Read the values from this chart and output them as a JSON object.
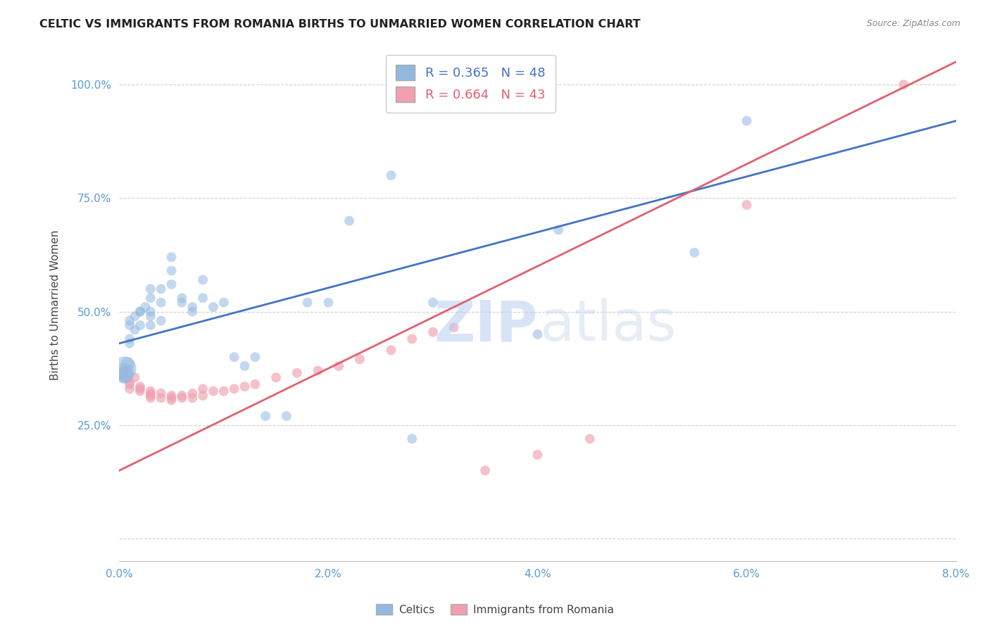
{
  "title": "CELTIC VS IMMIGRANTS FROM ROMANIA BIRTHS TO UNMARRIED WOMEN CORRELATION CHART",
  "source": "Source: ZipAtlas.com",
  "ylabel": "Births to Unmarried Women",
  "xlabel": "",
  "xlim": [
    0.0,
    0.08
  ],
  "ylim": [
    -0.05,
    1.08
  ],
  "xticks": [
    0.0,
    0.02,
    0.04,
    0.06,
    0.08
  ],
  "xtick_labels": [
    "0.0%",
    "2.0%",
    "4.0%",
    "6.0%",
    "8.0%"
  ],
  "yticks": [
    0.0,
    0.25,
    0.5,
    0.75,
    1.0
  ],
  "ytick_labels": [
    "",
    "25.0%",
    "50.0%",
    "75.0%",
    "100.0%"
  ],
  "watermark_zip": "ZIP",
  "watermark_atlas": "atlas",
  "legend_blue_label": "Celtics",
  "legend_pink_label": "Immigrants from Romania",
  "R_blue": 0.365,
  "N_blue": 48,
  "R_pink": 0.664,
  "N_pink": 43,
  "blue_color": "#93b8e0",
  "pink_color": "#f0a0b0",
  "blue_line_color": "#4472c4",
  "pink_line_color": "#e06070",
  "blue_line_x0": 0.0,
  "blue_line_y0": 0.43,
  "blue_line_x1": 0.08,
  "blue_line_y1": 0.92,
  "pink_line_x0": 0.0,
  "pink_line_y0": 0.15,
  "pink_line_x1": 0.08,
  "pink_line_y1": 1.05,
  "celtics_x": [
    0.0005,
    0.0005,
    0.0005,
    0.0008,
    0.001,
    0.001,
    0.001,
    0.001,
    0.0015,
    0.0015,
    0.002,
    0.002,
    0.002,
    0.0025,
    0.003,
    0.003,
    0.003,
    0.003,
    0.003,
    0.004,
    0.004,
    0.004,
    0.005,
    0.005,
    0.005,
    0.006,
    0.006,
    0.007,
    0.007,
    0.008,
    0.008,
    0.009,
    0.01,
    0.011,
    0.012,
    0.013,
    0.014,
    0.016,
    0.018,
    0.02,
    0.022,
    0.026,
    0.028,
    0.03,
    0.04,
    0.042,
    0.055,
    0.06
  ],
  "celtics_y": [
    0.375,
    0.365,
    0.36,
    0.385,
    0.43,
    0.44,
    0.47,
    0.48,
    0.46,
    0.49,
    0.5,
    0.5,
    0.47,
    0.51,
    0.5,
    0.53,
    0.55,
    0.49,
    0.47,
    0.55,
    0.52,
    0.48,
    0.62,
    0.59,
    0.56,
    0.53,
    0.52,
    0.51,
    0.5,
    0.57,
    0.53,
    0.51,
    0.52,
    0.4,
    0.38,
    0.4,
    0.27,
    0.27,
    0.52,
    0.52,
    0.7,
    0.8,
    0.22,
    0.52,
    0.45,
    0.68,
    0.63,
    0.92
  ],
  "celtics_size": [
    600,
    400,
    300,
    200,
    100,
    100,
    100,
    100,
    100,
    100,
    100,
    100,
    100,
    100,
    100,
    100,
    100,
    100,
    100,
    100,
    100,
    100,
    100,
    100,
    100,
    100,
    100,
    100,
    100,
    100,
    100,
    100,
    100,
    100,
    100,
    100,
    100,
    100,
    100,
    100,
    100,
    100,
    100,
    100,
    100,
    100,
    100,
    100
  ],
  "romania_x": [
    0.0005,
    0.0005,
    0.001,
    0.001,
    0.001,
    0.0015,
    0.002,
    0.002,
    0.002,
    0.003,
    0.003,
    0.003,
    0.003,
    0.004,
    0.004,
    0.005,
    0.005,
    0.005,
    0.006,
    0.006,
    0.007,
    0.007,
    0.008,
    0.008,
    0.009,
    0.01,
    0.011,
    0.012,
    0.013,
    0.015,
    0.017,
    0.019,
    0.021,
    0.023,
    0.026,
    0.028,
    0.03,
    0.032,
    0.035,
    0.04,
    0.045,
    0.06,
    0.075
  ],
  "romania_y": [
    0.37,
    0.355,
    0.345,
    0.34,
    0.33,
    0.355,
    0.335,
    0.33,
    0.325,
    0.325,
    0.32,
    0.315,
    0.31,
    0.32,
    0.31,
    0.315,
    0.31,
    0.305,
    0.315,
    0.31,
    0.32,
    0.31,
    0.33,
    0.315,
    0.325,
    0.325,
    0.33,
    0.335,
    0.34,
    0.355,
    0.365,
    0.37,
    0.38,
    0.395,
    0.415,
    0.44,
    0.455,
    0.465,
    0.15,
    0.185,
    0.22,
    0.735,
    1.0
  ],
  "romania_size": [
    100,
    100,
    100,
    100,
    100,
    100,
    100,
    100,
    100,
    100,
    100,
    100,
    100,
    100,
    100,
    100,
    100,
    100,
    100,
    100,
    100,
    100,
    100,
    100,
    100,
    100,
    100,
    100,
    100,
    100,
    100,
    100,
    100,
    100,
    100,
    100,
    100,
    100,
    100,
    100,
    100,
    100,
    100
  ],
  "background_color": "#ffffff",
  "grid_color": "#cccccc"
}
